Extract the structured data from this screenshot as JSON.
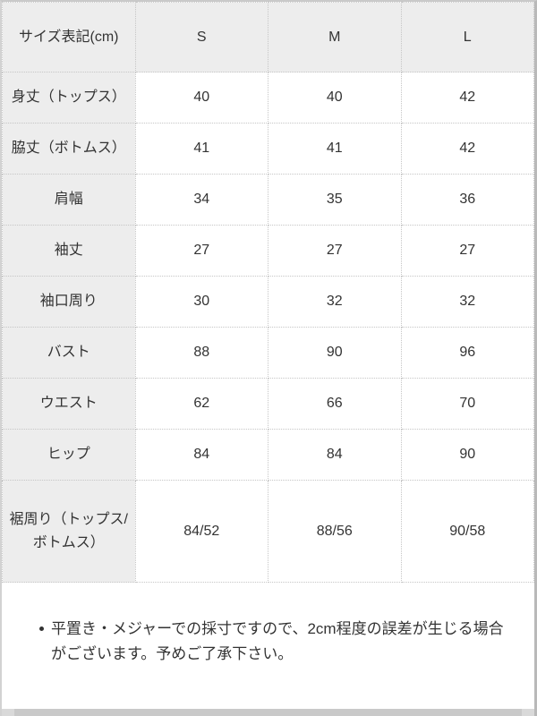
{
  "table": {
    "header": [
      "サイズ表記(cm)",
      "S",
      "M",
      "L"
    ],
    "rows": [
      {
        "label": "身丈（トップス）",
        "values": [
          "40",
          "40",
          "42"
        ]
      },
      {
        "label": "脇丈（ボトムス）",
        "values": [
          "41",
          "41",
          "42"
        ]
      },
      {
        "label": "肩幅",
        "values": [
          "34",
          "35",
          "36"
        ]
      },
      {
        "label": "袖丈",
        "values": [
          "27",
          "27",
          "27"
        ]
      },
      {
        "label": "袖口周り",
        "values": [
          "30",
          "32",
          "32"
        ]
      },
      {
        "label": "バスト",
        "values": [
          "88",
          "90",
          "96"
        ]
      },
      {
        "label": "ウエスト",
        "values": [
          "62",
          "66",
          "70"
        ]
      },
      {
        "label": "ヒップ",
        "values": [
          "84",
          "84",
          "90"
        ]
      },
      {
        "label": "裾周り（トップス/ボトムス）",
        "values": [
          "84/52",
          "88/56",
          "90/58"
        ]
      }
    ]
  },
  "note": {
    "text": "平置き・メジャーでの採寸ですので、2cm程度の誤差が生じる場合がございます。予めご了承下さい。"
  },
  "colors": {
    "header_bg": "#ededed",
    "cell_border": "#c6c6c6",
    "text": "#333333",
    "frame": "#c9c9c9",
    "scrollbar": "#c9c9c9"
  }
}
